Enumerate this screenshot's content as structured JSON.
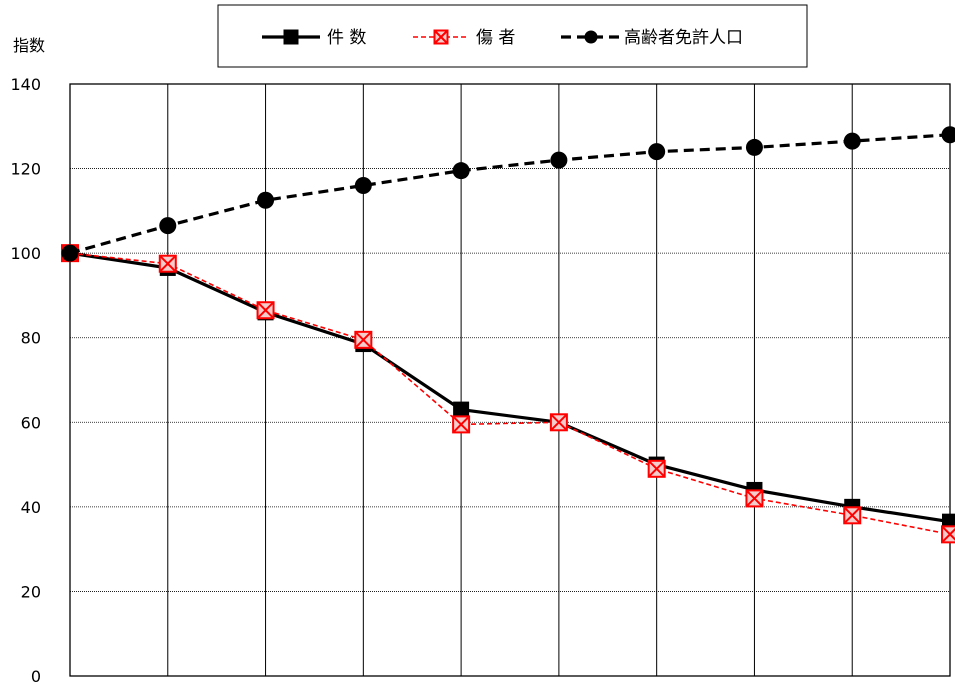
{
  "chart_data": {
    "type": "line",
    "ylabel": "指数",
    "ylim": [
      0,
      140
    ],
    "yticks": [
      0,
      20,
      40,
      60,
      80,
      100,
      120,
      140
    ],
    "x": [
      1,
      2,
      3,
      4,
      5,
      6,
      7,
      8,
      9,
      10
    ],
    "grid": {
      "horizontal": true,
      "vertical": true
    },
    "legend_position": "top-center",
    "series": [
      {
        "name": "件 数",
        "values": [
          100,
          96.5,
          86,
          78.5,
          63,
          60,
          50,
          44,
          40,
          36.5
        ],
        "color": "#000000",
        "line_style": "solid",
        "marker": "square"
      },
      {
        "name": "傷 者",
        "values": [
          100,
          97.5,
          86.5,
          79.5,
          59.5,
          60,
          49,
          42,
          38,
          33.5
        ],
        "color": "#ff0000",
        "line_style": "dashed",
        "marker": "square-x"
      },
      {
        "name": "高齢者免許人口",
        "values": [
          100,
          106.5,
          112.5,
          116,
          119.5,
          122,
          124,
          125,
          126.5,
          128
        ],
        "color": "#000000",
        "line_style": "dashed",
        "marker": "circle"
      }
    ]
  }
}
